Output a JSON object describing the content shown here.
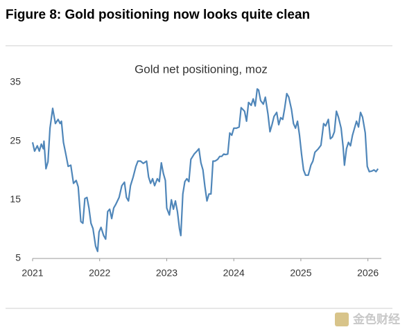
{
  "chart_data": {
    "type": "line",
    "figure_title": "Figure 8: Gold positioning now looks quite clean",
    "title": "Gold net positioning, moz",
    "watermark": "金色财经",
    "xlim": [
      2021,
      2026.2
    ],
    "xticks": [
      2021,
      2022,
      2023,
      2024,
      2025,
      2026
    ],
    "ylim": [
      5,
      35
    ],
    "yticks": [
      5,
      15,
      25,
      35
    ],
    "grid": false,
    "series": [
      {
        "name": "Gold net positioning",
        "color": "#4f86b9",
        "x": [
          2021.0,
          2021.03,
          2021.07,
          2021.1,
          2021.13,
          2021.16,
          2021.17,
          2021.2,
          2021.23,
          2021.26,
          2021.3,
          2021.34,
          2021.38,
          2021.41,
          2021.43,
          2021.46,
          2021.5,
          2021.53,
          2021.57,
          2021.61,
          2021.65,
          2021.68,
          2021.72,
          2021.75,
          2021.78,
          2021.81,
          2021.84,
          2021.87,
          2021.9,
          2021.94,
          2021.97,
          2021.99,
          2022.02,
          2022.06,
          2022.09,
          2022.12,
          2022.15,
          2022.18,
          2022.21,
          2022.24,
          2022.29,
          2022.33,
          2022.37,
          2022.4,
          2022.43,
          2022.46,
          2022.5,
          2022.54,
          2022.57,
          2022.61,
          2022.65,
          2022.7,
          2022.73,
          2022.76,
          2022.79,
          2022.82,
          2022.86,
          2022.89,
          2022.92,
          2022.95,
          2022.98,
          2023.0,
          2023.04,
          2023.07,
          2023.1,
          2023.13,
          2023.16,
          2023.19,
          2023.21,
          2023.24,
          2023.27,
          2023.3,
          2023.33,
          2023.36,
          2023.41,
          2023.45,
          2023.48,
          2023.51,
          2023.54,
          2023.57,
          2023.6,
          2023.63,
          2023.66,
          2023.69,
          2023.72,
          2023.76,
          2023.79,
          2023.82,
          2023.85,
          2023.88,
          2023.91,
          2023.94,
          2023.97,
          2024.0,
          2024.04,
          2024.08,
          2024.11,
          2024.16,
          2024.19,
          2024.22,
          2024.26,
          2024.29,
          2024.32,
          2024.35,
          2024.37,
          2024.4,
          2024.44,
          2024.47,
          2024.51,
          2024.54,
          2024.57,
          2024.6,
          2024.64,
          2024.67,
          2024.7,
          2024.73,
          2024.76,
          2024.79,
          2024.82,
          2024.86,
          2024.89,
          2024.92,
          2024.95,
          2024.98,
          2025.01,
          2025.04,
          2025.07,
          2025.11,
          2025.15,
          2025.18,
          2025.21,
          2025.26,
          2025.3,
          2025.34,
          2025.37,
          2025.41,
          2025.44,
          2025.47,
          2025.5,
          2025.53,
          2025.56,
          2025.6,
          2025.63,
          2025.65,
          2025.68,
          2025.71,
          2025.74,
          2025.77,
          2025.8,
          2025.83,
          2025.86,
          2025.89,
          2025.92,
          2025.96,
          2025.99,
          2026.02,
          2026.06,
          2026.09,
          2026.12,
          2026.15
        ],
        "values": [
          24.8,
          23.3,
          24.2,
          23.3,
          24.5,
          23.7,
          25.0,
          20.3,
          21.5,
          27.2,
          30.6,
          28.0,
          28.7,
          28.0,
          28.4,
          24.8,
          22.5,
          20.7,
          20.9,
          17.8,
          18.3,
          17.2,
          11.3,
          11.0,
          15.2,
          15.4,
          13.6,
          11.0,
          10.1,
          7.1,
          6.2,
          9.5,
          10.3,
          8.9,
          8.3,
          13.0,
          13.4,
          11.8,
          13.6,
          14.2,
          15.4,
          17.4,
          18.0,
          15.4,
          14.8,
          17.4,
          18.9,
          20.7,
          21.6,
          21.6,
          21.2,
          21.6,
          18.9,
          17.8,
          18.6,
          17.4,
          18.6,
          18.1,
          21.3,
          19.5,
          18.3,
          13.6,
          12.4,
          15.0,
          13.4,
          14.8,
          13.0,
          10.1,
          8.9,
          16.0,
          18.1,
          18.6,
          18.1,
          21.9,
          22.8,
          23.3,
          23.7,
          21.3,
          20.1,
          17.2,
          14.8,
          16.0,
          16.0,
          21.6,
          21.6,
          21.9,
          22.4,
          22.4,
          22.8,
          22.7,
          22.8,
          26.4,
          26.0,
          27.2,
          27.2,
          27.4,
          30.7,
          30.1,
          28.4,
          31.6,
          31.1,
          32.2,
          31.0,
          33.9,
          33.7,
          31.9,
          31.3,
          32.5,
          29.6,
          26.6,
          27.8,
          29.2,
          29.9,
          27.8,
          29.0,
          28.7,
          30.7,
          33.1,
          32.5,
          30.4,
          28.0,
          27.2,
          28.4,
          26.0,
          22.8,
          20.1,
          19.2,
          19.2,
          20.9,
          21.6,
          23.1,
          23.7,
          24.3,
          28.0,
          27.6,
          28.7,
          25.4,
          25.7,
          26.6,
          30.1,
          29.1,
          27.2,
          24.0,
          20.9,
          23.7,
          24.8,
          24.2,
          26.0,
          27.2,
          28.4,
          27.4,
          29.9,
          29.1,
          26.4,
          20.7,
          19.8,
          19.9,
          20.1,
          19.8,
          20.3
        ]
      }
    ]
  }
}
